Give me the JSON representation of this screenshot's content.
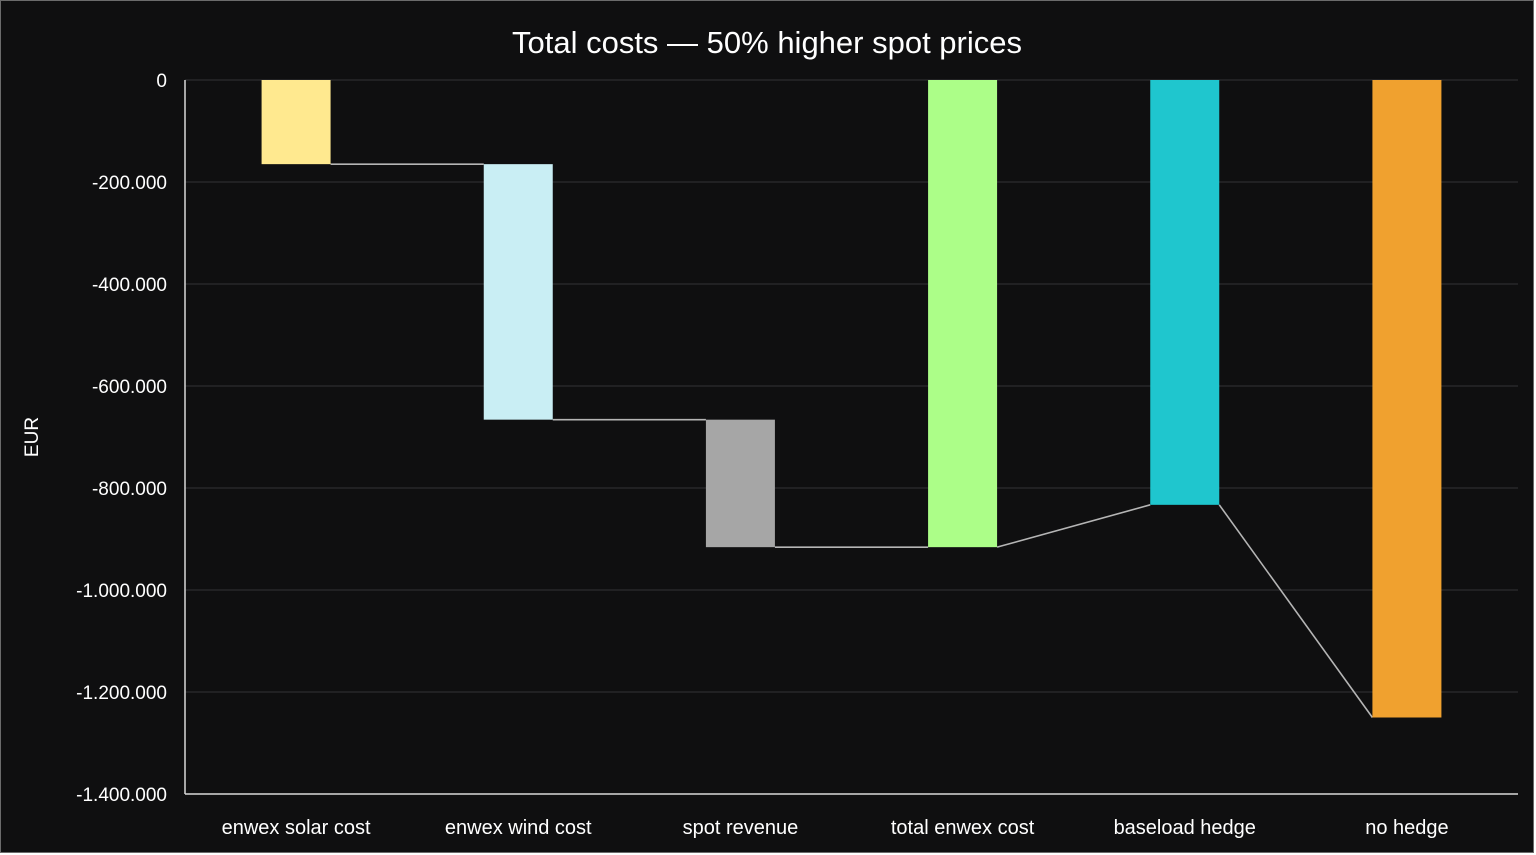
{
  "chart_data": {
    "type": "bar",
    "subtype": "waterfall",
    "title": "Total costs — 50% higher spot prices",
    "ylabel": "EUR",
    "xlabel": "",
    "ylim": [
      -1400000,
      0
    ],
    "yticks": [
      0,
      -200000,
      -400000,
      -600000,
      -800000,
      -1000000,
      -1200000,
      -1400000
    ],
    "ytick_labels": [
      "0",
      "-200.000",
      "-400.000",
      "-600.000",
      "-800.000",
      "-1.000.000",
      "-1.200.000",
      "-1.400.000"
    ],
    "grid": true,
    "legend": "none",
    "categories": [
      "enwex solar cost",
      "enwex wind cost",
      "spot revenue",
      "total enwex cost",
      "baseload hedge",
      "no hedge"
    ],
    "bars": [
      {
        "category": "enwex solar cost",
        "start": 0,
        "end": -165000,
        "color": "#ffe98f"
      },
      {
        "category": "enwex wind cost",
        "start": -165000,
        "end": -666000,
        "color": "#c9eef4"
      },
      {
        "category": "spot revenue",
        "start": -666000,
        "end": -916000,
        "color": "#a6a6a6"
      },
      {
        "category": "total enwex cost",
        "start": 0,
        "end": -916000,
        "color": "#acfe88"
      },
      {
        "category": "baseload hedge",
        "start": 0,
        "end": -833000,
        "color": "#1fc6ce"
      },
      {
        "category": "no hedge",
        "start": 0,
        "end": -1250000,
        "color": "#f0a12f"
      }
    ],
    "colors": {
      "background": "#0f0f10",
      "text": "#ffffff",
      "grid": "#333336",
      "connector": "#b5b5b5"
    }
  }
}
